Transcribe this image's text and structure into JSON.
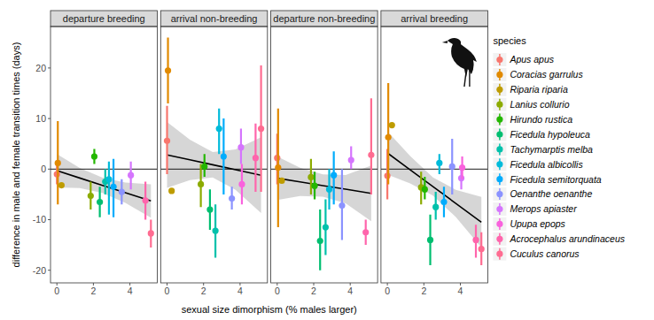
{
  "chart_data": {
    "type": "scatter",
    "x_label": "sexual size dimorphism (% males larger)",
    "y_label": "difference in male and female transition times (days)",
    "legend_title": "species",
    "legend": "right",
    "grid": false,
    "xlim": [
      -0.35,
      5.5
    ],
    "ylim": [
      -22.5,
      28.2
    ],
    "xticks": [
      0,
      2,
      4
    ],
    "yticks": [
      -20,
      -10,
      0,
      10,
      20
    ],
    "reference_line": 0,
    "facets": [
      "departure breeding",
      "arrival non-breeding",
      "departure non-breeding",
      "arrival breeding"
    ],
    "series": [
      {
        "name": "Apus apus",
        "color": "#F8766D",
        "x": 0.0,
        "values": [
          -1,
          5.6,
          2.2,
          -1.3
        ],
        "lower": [
          -3,
          -1,
          -3,
          -6
        ],
        "upper": [
          1,
          12.5,
          7,
          4
        ]
      },
      {
        "name": "Coracias garrulus",
        "color": "#E18A00",
        "x": 0.05,
        "values": [
          1.2,
          19.5,
          0.3,
          6.3
        ],
        "lower": [
          -7,
          13,
          -11.5,
          -3
        ],
        "upper": [
          9.5,
          26,
          12,
          17
        ]
      },
      {
        "name": "Riparia riparia",
        "color": "#BE9C00",
        "x": 0.25,
        "values": [
          -3.2,
          -4.3,
          -2.3,
          8.7
        ],
        "lower": [
          null,
          null,
          null,
          null
        ],
        "upper": [
          null,
          null,
          null,
          null
        ]
      },
      {
        "name": "Lanius collurio",
        "color": "#8CAB00",
        "x": 1.85,
        "values": [
          -5.3,
          -3.0,
          -1.6,
          -3.6
        ],
        "lower": [
          -8,
          -7.5,
          -5,
          -7
        ],
        "upper": [
          -2.5,
          1,
          2,
          -0.5
        ]
      },
      {
        "name": "Hirundo rustica",
        "color": "#24B700",
        "x": 2.05,
        "values": [
          2.5,
          0.5,
          -3.3,
          -4
        ],
        "lower": [
          1,
          -1.5,
          -6,
          -6
        ],
        "upper": [
          4,
          3,
          -0.5,
          -1.5
        ]
      },
      {
        "name": "Ficedula hypoleuca",
        "color": "#00BE70",
        "x": 2.35,
        "values": [
          -6.5,
          -8,
          -14.2,
          -14
        ],
        "lower": [
          -9.5,
          -12,
          -20,
          -19
        ],
        "upper": [
          -3.5,
          -4,
          -8,
          -9
        ]
      },
      {
        "name": "Tachymarptis melba",
        "color": "#00C1AB",
        "x": 2.65,
        "values": [
          -2.5,
          -12.2,
          -11.5,
          -7.5
        ],
        "lower": [
          -5,
          -17.5,
          -17,
          -10
        ],
        "upper": [
          0,
          -7,
          -6,
          -4.5
        ]
      },
      {
        "name": "Ficedula albicollis",
        "color": "#00BBDA",
        "x": 2.85,
        "values": [
          -2.0,
          8,
          -4,
          1.2
        ],
        "lower": [
          -9,
          3,
          -8,
          -1
        ],
        "upper": [
          1.5,
          12,
          0,
          3
        ]
      },
      {
        "name": "Ficedula semitorquata",
        "color": "#00ACFC",
        "x": 3.1,
        "values": [
          -3.5,
          2.5,
          -1.2,
          -6.5
        ],
        "lower": [
          -9.5,
          -5,
          -7,
          -9.5
        ],
        "upper": [
          2,
          10,
          3.5,
          -3.5
        ]
      },
      {
        "name": "Oenanthe oenanthe",
        "color": "#8B93FF",
        "x": 3.55,
        "values": [
          -4.5,
          -5.8,
          -7.2,
          0.5
        ],
        "lower": [
          -7,
          -8,
          -14,
          -5
        ],
        "upper": [
          -2,
          -3.5,
          0,
          6
        ]
      },
      {
        "name": "Merops apiaster",
        "color": "#D575FE",
        "x": 4.05,
        "values": [
          -1.2,
          4.3,
          1.8,
          -1.8
        ],
        "lower": [
          -4,
          1,
          0,
          -4
        ],
        "upper": [
          1.5,
          8,
          4.5,
          0.5
        ]
      },
      {
        "name": "Upupa epops",
        "color": "#F962DD",
        "x": 4.1,
        "values": [
          null,
          -3.0,
          null,
          0.3
        ],
        "lower": [
          null,
          -7,
          null,
          -2
        ],
        "upper": [
          null,
          1,
          null,
          2.5
        ]
      },
      {
        "name": "Acrocephalus arundinaceus",
        "color": "#FF65AC",
        "x": 4.85,
        "values": [
          -6.2,
          2.2,
          -12.5,
          -14
        ],
        "lower": [
          -10,
          -4.5,
          -15,
          -17.5
        ],
        "upper": [
          -2.5,
          9,
          -10,
          -11
        ]
      },
      {
        "name": "Cuculus canorus",
        "color": "#FF6C91",
        "x": 5.15,
        "values": [
          -12.7,
          8,
          2.8,
          -15.8
        ],
        "lower": [
          -15.5,
          -4.5,
          -5,
          -19
        ],
        "upper": [
          -10,
          20.5,
          14,
          -12.5
        ]
      }
    ],
    "fits": [
      {
        "x": [
          0,
          1.25,
          2.5,
          3.75,
          5.15
        ],
        "values": [
          -0.3,
          -1.76,
          -3.21,
          -4.67,
          -6.3
        ],
        "lower": [
          -3.6,
          -3.76,
          -4.71,
          -6.67,
          -9.6
        ],
        "upper": [
          3.0,
          0.24,
          -1.71,
          -2.67,
          -3.0
        ]
      },
      {
        "x": [
          0,
          1.25,
          2.5,
          3.75,
          5.15
        ],
        "values": [
          2.8,
          1.83,
          0.86,
          -0.11,
          -1.2
        ],
        "lower": [
          -3.7,
          -2.17,
          -1.64,
          -4.11,
          -8.7
        ],
        "upper": [
          9.3,
          5.83,
          3.36,
          3.89,
          6.3
        ]
      },
      {
        "x": [
          0,
          1.25,
          2.5,
          3.75,
          5.15
        ],
        "values": [
          -1.8,
          -2.53,
          -3.26,
          -3.98,
          -4.8
        ],
        "lower": [
          -6.1,
          -5.33,
          -5.46,
          -6.78,
          -10.3
        ],
        "upper": [
          2.5,
          0.27,
          -1.06,
          -1.18,
          0.7
        ]
      },
      {
        "x": [
          0,
          1.25,
          2.5,
          3.75,
          5.15
        ],
        "values": [
          3.2,
          -0.13,
          -3.45,
          -6.78,
          -10.5
        ],
        "lower": [
          -1.1,
          -2.83,
          -5.25,
          -9.48,
          -15.5
        ],
        "upper": [
          7.5,
          2.57,
          -1.65,
          -4.08,
          -5.5
        ]
      }
    ]
  }
}
